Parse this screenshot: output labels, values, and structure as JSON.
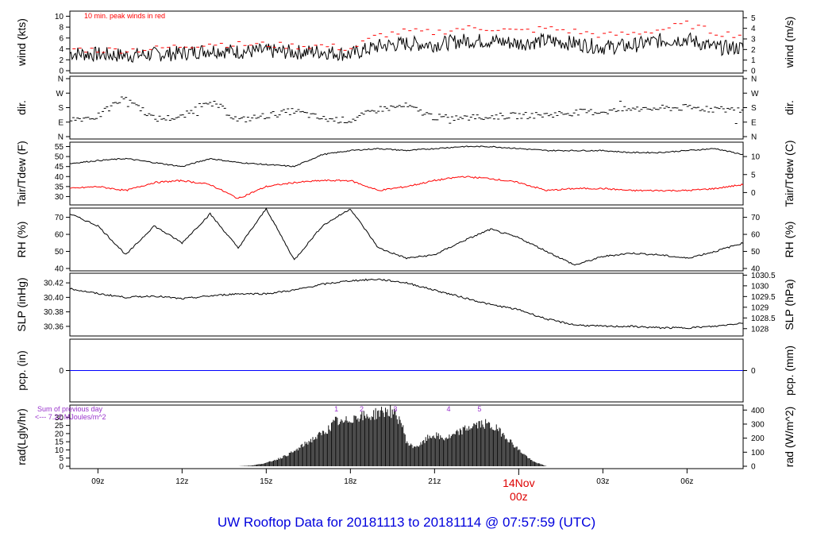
{
  "chart_data": [
    {
      "type": "line",
      "ylabel_left": "wind (kts)",
      "ylabel_right": "wind (m/s)",
      "annotation": "10 min. peak winds in red",
      "ylim": [
        0,
        10.5
      ],
      "yticks_left": [
        0,
        2,
        4,
        6,
        8,
        10
      ],
      "yticks_right": [
        0,
        1,
        2,
        3,
        4,
        5
      ],
      "series": [
        {
          "x": [
            0,
            1,
            2,
            3,
            4,
            5,
            6,
            7,
            8,
            9,
            10,
            11,
            12,
            13,
            14,
            15,
            16,
            17,
            18,
            19,
            20,
            21,
            22,
            23,
            24
          ],
          "values": [
            3.2,
            3.0,
            2.8,
            3.0,
            3.2,
            3.8,
            3.5,
            3.6,
            3.4,
            3.5,
            3.0,
            4.5,
            5.0,
            4.8,
            5.5,
            5.5,
            5.0,
            5.5,
            5.0,
            4.3,
            4.6,
            5.5,
            5.8,
            4.2,
            4.2
          ],
          "color": "#000000"
        },
        {
          "x": [
            0,
            1,
            2,
            3,
            4,
            5,
            6,
            7,
            8,
            9,
            10,
            11,
            12,
            13,
            14,
            15,
            16,
            17,
            18,
            19,
            20,
            21,
            22,
            23,
            24
          ],
          "values": [
            4.0,
            3.8,
            3.8,
            4.0,
            4.5,
            5.0,
            4.8,
            4.8,
            4.5,
            4.6,
            4.0,
            6.5,
            7.2,
            7.0,
            7.8,
            7.8,
            7.2,
            7.8,
            7.2,
            6.5,
            6.8,
            7.5,
            8.6,
            7.0,
            6.5
          ],
          "color": "#ff0000"
        }
      ]
    },
    {
      "type": "scatter",
      "ylabel_left": "dir.",
      "ylabel_right": "dir.",
      "yticks_left": [
        "N",
        "E",
        "S",
        "W",
        "N"
      ],
      "yticks_right": [
        "N",
        "E",
        "S",
        "W",
        "N"
      ],
      "ylim": [
        0,
        360
      ],
      "series": [
        {
          "x": [
            0,
            1,
            2,
            3,
            4,
            5,
            6,
            7,
            8,
            9,
            10,
            11,
            12,
            13,
            14,
            15,
            16,
            17,
            18,
            19,
            20,
            21,
            22,
            23,
            24
          ],
          "values": [
            105,
            125,
            250,
            110,
            120,
            230,
            100,
            130,
            160,
            110,
            100,
            170,
            190,
            120,
            115,
            125,
            130,
            135,
            150,
            155,
            170,
            175,
            180,
            170,
            165
          ],
          "color": "#000000"
        }
      ]
    },
    {
      "type": "line",
      "ylabel_left": "Tair/Tdew (F)",
      "ylabel_right": "Tair/Tdew (C)",
      "ylim": [
        27,
        56
      ],
      "yticks_left": [
        30,
        35,
        40,
        45,
        50,
        55
      ],
      "yticks_right": [
        0,
        5,
        10
      ],
      "series": [
        {
          "x": [
            0,
            1,
            2,
            3,
            4,
            5,
            6,
            7,
            8,
            9,
            10,
            11,
            12,
            13,
            14,
            15,
            16,
            17,
            18,
            19,
            20,
            21,
            22,
            23,
            24
          ],
          "values": [
            46.5,
            48,
            49,
            47,
            45,
            49,
            47,
            46,
            45,
            51,
            53,
            54,
            53,
            54,
            55,
            55,
            54,
            53,
            53,
            53,
            52,
            52,
            53,
            54,
            51
          ],
          "color": "#000000"
        },
        {
          "x": [
            0,
            1,
            2,
            3,
            4,
            5,
            6,
            7,
            8,
            9,
            10,
            11,
            12,
            13,
            14,
            15,
            16,
            17,
            18,
            19,
            20,
            21,
            22,
            23,
            24
          ],
          "values": [
            34,
            35,
            33,
            37,
            38,
            36,
            29,
            35,
            37,
            38,
            38,
            33,
            35,
            38,
            40,
            39,
            37,
            33,
            34,
            34,
            33,
            33,
            33,
            34,
            36
          ],
          "color": "#ff0000"
        }
      ]
    },
    {
      "type": "line",
      "ylabel_left": "RH (%)",
      "ylabel_right": "RH (%)",
      "ylim": [
        40,
        74
      ],
      "yticks_left": [
        40,
        50,
        60,
        70
      ],
      "yticks_right": [
        40,
        50,
        60,
        70
      ],
      "series": [
        {
          "x": [
            0,
            1,
            2,
            3,
            4,
            5,
            6,
            7,
            8,
            9,
            10,
            11,
            12,
            13,
            14,
            15,
            16,
            17,
            18,
            19,
            20,
            21,
            22,
            23,
            24
          ],
          "values": [
            72,
            65,
            48,
            65,
            55,
            72,
            52,
            75,
            45,
            65,
            75,
            52,
            46,
            48,
            56,
            63,
            58,
            50,
            42,
            47,
            49,
            48,
            46,
            50,
            55
          ],
          "color": "#000000"
        }
      ]
    },
    {
      "type": "line",
      "ylabel_left": "SLP (inHg)",
      "ylabel_right": "SLP (hPa)",
      "ylim": [
        30.35,
        30.43
      ],
      "yticks_left": [
        "30.36",
        "30.38",
        "30.40",
        "30.42"
      ],
      "yticks_right": [
        "1028",
        "1028.5",
        "1029",
        "1029.5",
        "1030",
        "1030.5"
      ],
      "series": [
        {
          "x": [
            0,
            1,
            2,
            3,
            4,
            5,
            6,
            7,
            8,
            9,
            10,
            11,
            12,
            13,
            14,
            15,
            16,
            17,
            18,
            19,
            20,
            21,
            22,
            23,
            24
          ],
          "values": [
            30.412,
            30.405,
            30.4,
            30.402,
            30.398,
            30.402,
            30.405,
            30.405,
            30.41,
            30.418,
            30.423,
            30.425,
            30.42,
            30.41,
            30.4,
            30.39,
            30.383,
            30.37,
            30.362,
            30.36,
            30.36,
            30.358,
            30.358,
            30.36,
            30.365
          ],
          "color": "#000000"
        }
      ]
    },
    {
      "type": "line",
      "ylabel_left": "pcp. (in)",
      "ylabel_right": "pcp. (mm)",
      "yticks_left": [
        0
      ],
      "yticks_right": [
        0
      ],
      "series": [
        {
          "x": [
            0,
            24
          ],
          "values": [
            0,
            0
          ],
          "color": "#0000ff"
        }
      ]
    },
    {
      "type": "area",
      "ylabel_left": "rad(Lgly/hr)",
      "ylabel_right": "rad (W/m^2)",
      "annotation_lines": [
        "Sum of previous day",
        "<--- 7.22 MJoules/m^2"
      ],
      "ylim": [
        0,
        36
      ],
      "yticks_left": [
        0,
        5,
        10,
        15,
        20,
        25,
        30
      ],
      "yticks_right": [
        0,
        100,
        200,
        300,
        400
      ],
      "markers": [
        "1",
        "2",
        "3",
        "4",
        "5"
      ],
      "series": [
        {
          "x": [
            6,
            6.5,
            7,
            7.5,
            8,
            8.5,
            9,
            9.3,
            9.5,
            9.7,
            10,
            10.3,
            10.6,
            11,
            11.4,
            11.8,
            12,
            12.2,
            12.5,
            12.8,
            13,
            13.3,
            13.6,
            14,
            14.4,
            14.8,
            15.2,
            15.5,
            16,
            16.5,
            17
          ],
          "values": [
            0,
            0.5,
            2,
            5,
            9,
            15,
            20,
            24,
            28,
            26,
            29,
            31,
            30,
            33,
            34,
            28,
            15,
            12,
            13,
            18,
            19,
            17,
            18,
            22,
            25,
            26,
            23,
            19,
            10,
            3,
            0
          ],
          "color": "#000000"
        }
      ]
    },
    {
      "type": "line",
      "x_ticks": [
        "09z",
        "12z",
        "15z",
        "18z",
        "21z",
        "03z",
        "06z"
      ],
      "x_major_label_day": "14Nov",
      "x_major_label_hour": "00z"
    }
  ],
  "footer_title": "UW Rooftop Data for 20181113  to  20181114 @ 07:57:59  (UTC)"
}
